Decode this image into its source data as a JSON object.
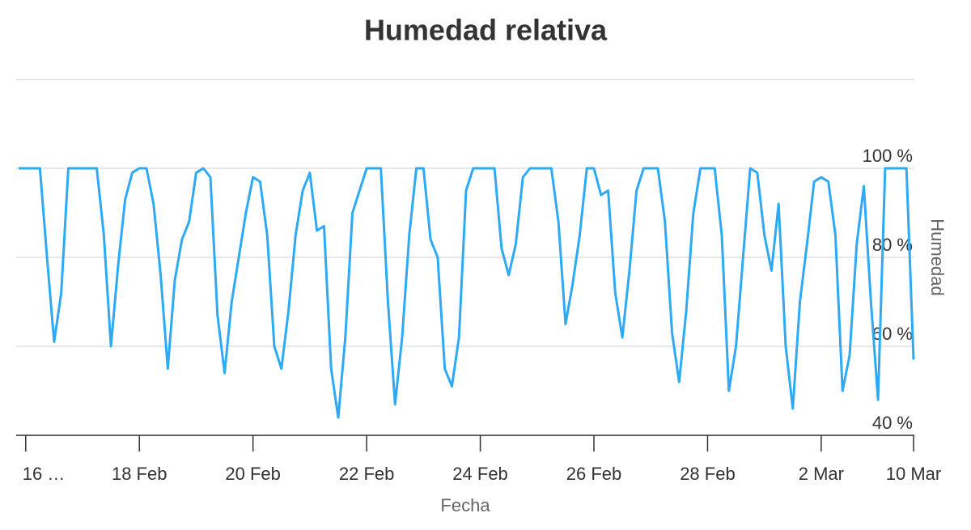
{
  "chart_data": {
    "type": "line",
    "title": "Humedad relativa",
    "x_label": "Fecha",
    "y_label": "Humedad",
    "categories": [
      null,
      "16 …",
      null,
      null,
      null,
      null,
      null,
      null,
      null,
      null,
      null,
      null,
      null,
      null,
      null,
      null,
      null,
      "18 Feb",
      null,
      null,
      null,
      null,
      null,
      null,
      null,
      null,
      null,
      null,
      null,
      null,
      null,
      null,
      null,
      "20 Feb",
      null,
      null,
      null,
      null,
      null,
      null,
      null,
      null,
      null,
      null,
      null,
      null,
      null,
      null,
      null,
      "22 Feb",
      null,
      null,
      null,
      null,
      null,
      null,
      null,
      null,
      null,
      null,
      null,
      null,
      null,
      null,
      null,
      "24 Feb",
      null,
      null,
      null,
      null,
      null,
      null,
      null,
      null,
      null,
      null,
      null,
      null,
      null,
      null,
      null,
      "26 Feb",
      null,
      null,
      null,
      null,
      null,
      null,
      null,
      null,
      null,
      null,
      null,
      null,
      null,
      null,
      null,
      "28 Feb",
      null,
      null,
      null,
      null,
      null,
      null,
      null,
      null,
      null,
      null,
      null,
      null,
      null,
      null,
      null,
      "2 Mar",
      null,
      null,
      null,
      null,
      null,
      null,
      null,
      null,
      null,
      null,
      null,
      null,
      "10 Mar"
    ],
    "series": [
      {
        "name": "Humedad",
        "color": "#2eaaf5",
        "values": [
          100,
          100,
          100,
          100,
          80,
          61,
          72,
          100,
          100,
          100,
          100,
          100,
          85,
          60,
          78,
          93,
          99,
          100,
          100,
          92,
          76,
          55,
          75,
          84,
          88,
          99,
          100,
          98,
          67,
          54,
          70,
          80,
          90,
          98,
          97,
          85,
          60,
          55,
          68,
          85,
          95,
          99,
          86,
          87,
          55,
          44,
          62,
          90,
          95,
          100,
          100,
          100,
          70,
          47,
          62,
          85,
          100,
          100,
          84,
          80,
          55,
          51,
          62,
          95,
          100,
          100,
          100,
          100,
          82,
          76,
          83,
          98,
          100,
          100,
          100,
          100,
          88,
          65,
          74,
          85,
          100,
          100,
          94,
          95,
          72,
          62,
          77,
          95,
          100,
          100,
          100,
          88,
          63,
          52,
          68,
          90,
          100,
          100,
          100,
          85,
          50,
          60,
          80,
          100,
          99,
          85,
          77,
          92,
          60,
          46,
          70,
          83,
          97,
          98,
          97,
          85,
          50,
          58,
          83,
          96,
          70,
          48,
          100,
          100,
          100,
          100,
          57
        ]
      }
    ],
    "ylim": [
      40,
      120
    ],
    "yticks": [
      {
        "value": 40,
        "label": "40 %"
      },
      {
        "value": 60,
        "label": "60 %"
      },
      {
        "value": 80,
        "label": "80 %"
      },
      {
        "value": 100,
        "label": "100 %"
      }
    ],
    "grid": true
  }
}
